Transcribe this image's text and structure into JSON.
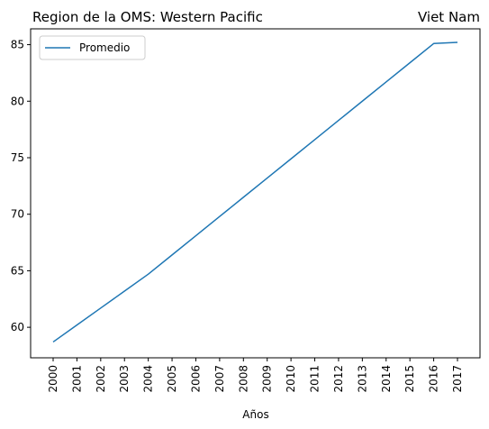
{
  "chart_data": {
    "type": "line",
    "title_left": "Region de la OMS: Western Pacific",
    "title_right": "Viet Nam",
    "xlabel": "Años",
    "ylabel": "",
    "x": [
      "2000",
      "2001",
      "2002",
      "2003",
      "2004",
      "2005",
      "2006",
      "2007",
      "2008",
      "2009",
      "2010",
      "2011",
      "2012",
      "2013",
      "2014",
      "2015",
      "2016",
      "2017"
    ],
    "series": [
      {
        "name": "Promedio",
        "color": "#1f77b4",
        "values": [
          58.7,
          60.2,
          61.7,
          63.2,
          64.7,
          66.4,
          68.1,
          69.8,
          71.5,
          73.2,
          74.9,
          76.6,
          78.3,
          80.0,
          81.7,
          83.4,
          85.1,
          85.2
        ]
      }
    ],
    "yticks": [
      60,
      65,
      70,
      75,
      80,
      85
    ],
    "ylim": [
      57.3,
      86.4
    ],
    "legend_position": "upper-left",
    "grid": false
  }
}
